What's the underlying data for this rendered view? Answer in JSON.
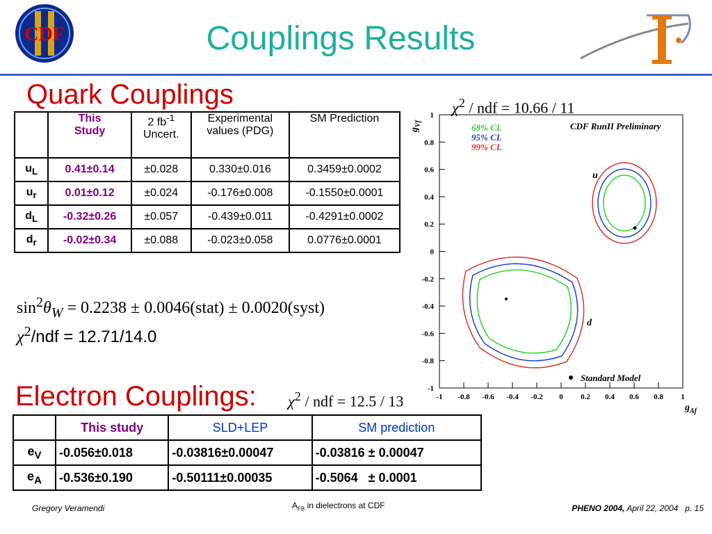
{
  "header": {
    "title": "Couplings Results",
    "logo_text": "CDF"
  },
  "quark": {
    "heading": "Quark Couplings",
    "table": {
      "header": [
        {
          "text": "This",
          "line2": "Study"
        },
        {
          "text": "2 fb",
          "sup": "-1",
          "line2": "Uncert."
        },
        {
          "text": "Experimental",
          "line2": "values (PDG)"
        },
        {
          "text": "SM Prediction"
        }
      ],
      "rows": [
        [
          {
            "text": "u",
            "sub": "L"
          },
          {
            "text": "0.41±0.14"
          },
          {
            "text": "±0.028"
          },
          {
            "text": "0.330±0.016"
          },
          {
            "text": "0.3459±0.0002"
          }
        ],
        [
          {
            "text": "u",
            "sub": "r"
          },
          {
            "text": "0.01±0.12"
          },
          {
            "text": "±0.024"
          },
          {
            "text": "-0.176±0.008"
          },
          {
            "text": "-0.1550±0.0001"
          }
        ],
        [
          {
            "text": "d",
            "sub": "L"
          },
          {
            "text": "-0.32±0.26"
          },
          {
            "text": "±0.057"
          },
          {
            "text": "-0.439±0.011"
          },
          {
            "text": "-0.4291±0.0002"
          }
        ],
        [
          {
            "text": "d",
            "sub": "r"
          },
          {
            "text": "-0.02±0.34"
          },
          {
            "text": "±0.088"
          },
          {
            "text": "-0.023±0.058"
          },
          {
            "text": "0.0776±0.0001"
          }
        ]
      ]
    },
    "sin_theta": {
      "func": "sin",
      "sup": "2",
      "sym": "θ",
      "sub": "W",
      "rest": "= 0.2238 ± 0.0046(stat) ± 0.0020(syst)"
    },
    "chi2": {
      "sym": "χ",
      "sup": "2",
      "rest": "/ndf = 12.71/14.0"
    }
  },
  "plot": {
    "chi2": {
      "sym": "χ",
      "sup": "2",
      "rest": " / ndf  = 10.66 / 11"
    },
    "y_label": {
      "text": "g",
      "sub": "Vf"
    },
    "x_label": {
      "text": "g",
      "sub": "Af"
    },
    "legend": [
      "68% CL",
      "95% CL",
      "99% CL"
    ],
    "preliminary": "CDF RunII Preliminary",
    "labels": {
      "u": "u",
      "d": "d",
      "sm": "Standard Model"
    },
    "xticks": [
      "-1",
      "-0.8",
      "-0.6",
      "-0.4",
      "-0.2",
      "0",
      "0.2",
      "0.4",
      "0.6",
      "0.8",
      "1"
    ],
    "yticks": [
      "-1",
      "-0.8",
      "-0.6",
      "-0.4",
      "-0.2",
      "0",
      "0.2",
      "0.4",
      "0.6",
      "0.8",
      "1"
    ]
  },
  "electron": {
    "heading": "Electron Couplings:",
    "chi2": {
      "sym": "χ",
      "sup": "2",
      "rest": " / ndf  = 12.5 / 13"
    },
    "table": {
      "header": [
        {
          "text": "This study"
        },
        {
          "text": "SLD+LEP"
        },
        {
          "text": "SM prediction"
        }
      ],
      "rows": [
        [
          {
            "text": "e",
            "sub": "V"
          },
          {
            "text": "-0.056±0.018"
          },
          {
            "text": "-0.03816±0.00047"
          },
          {
            "text": "-0.03816 ± 0.00047"
          }
        ],
        [
          {
            "text": "e",
            "sub": "A"
          },
          {
            "text": "-0.536±0.190"
          },
          {
            "text": "-0.50111±0.00035"
          },
          {
            "text": "-0.5064   ± 0.0001"
          }
        ]
      ]
    }
  },
  "footer": {
    "author": "Gregory Veramendi",
    "topic": {
      "text": "A",
      "sub": "FB",
      "rest": " in dielectrons at CDF"
    },
    "conf": "PHENO 2004,",
    "date": " April 22, 2004   p. 15"
  }
}
